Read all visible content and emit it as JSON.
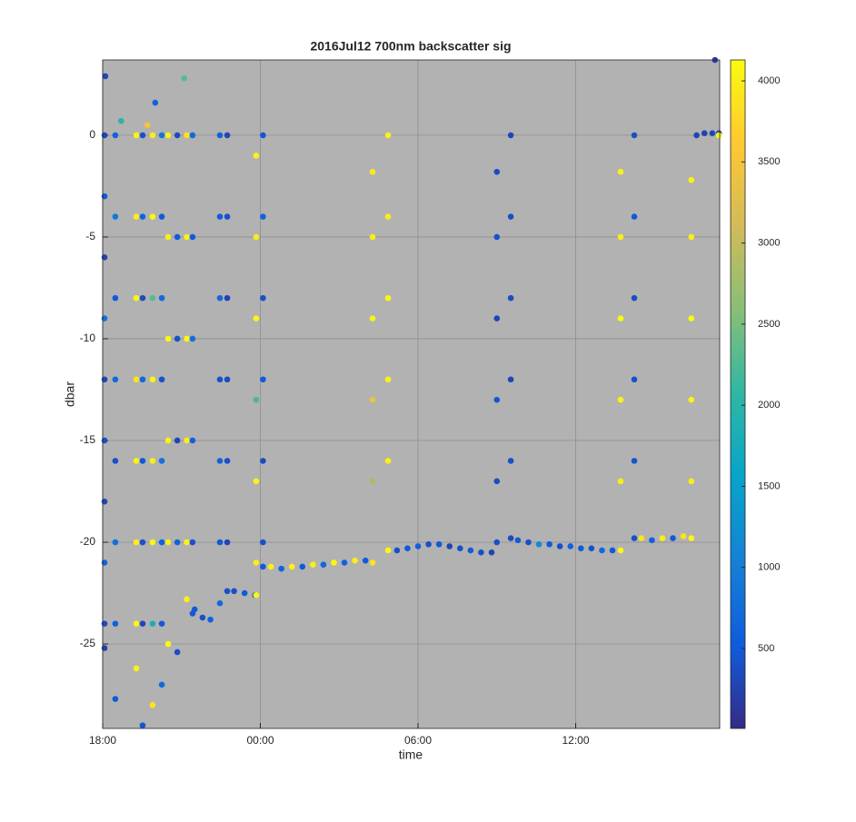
{
  "chart_data": {
    "type": "scatter",
    "title": "2016Jul12 700nm backscatter sig",
    "x_label": "time",
    "y_label": "dbar",
    "xlim": [
      0,
      23.48
    ],
    "ylim": [
      -29.15,
      3.7
    ],
    "xticks": [
      {
        "value": 0,
        "label": "18:00"
      },
      {
        "value": 6,
        "label": "00:00"
      },
      {
        "value": 12,
        "label": "06:00"
      },
      {
        "value": 18,
        "label": "12:00"
      }
    ],
    "yticks": [
      -25,
      -20,
      -15,
      -10,
      -5,
      0
    ],
    "grid": true,
    "background": "#b2b2b2",
    "clim": [
      7,
      4129
    ],
    "cticks": [
      500,
      1000,
      1500,
      2000,
      2500,
      3000,
      3500,
      4000
    ],
    "colormap": [
      "#352a87",
      "#0f5cdd",
      "#1481d6",
      "#06a4ca",
      "#2eb7a4",
      "#87bf77",
      "#d1bb59",
      "#fec832",
      "#f9fb0e"
    ],
    "x": [
      0.07,
      0.07,
      0.07,
      0.07,
      0.07,
      0.07,
      0.07,
      0.07,
      0.07,
      0.07,
      0.48,
      0.48,
      0.48,
      0.48,
      0.48,
      0.48,
      0.48,
      0.48,
      1.28,
      1.28,
      1.28,
      1.28,
      1.28,
      1.28,
      1.28,
      1.28,
      1.52,
      1.52,
      1.52,
      1.52,
      1.52,
      1.52,
      1.52,
      1.52,
      1.9,
      1.9,
      1.9,
      1.9,
      1.9,
      1.9,
      1.9,
      1.9,
      2.25,
      2.25,
      2.25,
      2.25,
      2.25,
      2.25,
      2.25,
      2.25,
      2.49,
      2.49,
      2.49,
      2.49,
      2.49,
      2.49,
      2.84,
      2.84,
      2.84,
      2.84,
      2.84,
      2.84,
      3.2,
      3.2,
      3.2,
      3.2,
      3.2,
      3.2,
      3.42,
      3.42,
      3.42,
      3.42,
      3.42,
      3.42,
      3.5,
      3.8,
      4.1,
      4.46,
      4.46,
      4.46,
      4.46,
      4.46,
      4.46,
      4.46,
      4.74,
      4.74,
      4.74,
      4.74,
      4.74,
      4.74,
      4.74,
      5.0,
      5.4,
      5.8,
      5.84,
      5.84,
      5.84,
      5.84,
      5.84,
      5.84,
      5.84,
      6.1,
      6.1,
      6.1,
      6.1,
      6.1,
      6.1,
      6.1,
      6.4,
      6.8,
      7.2,
      7.6,
      8.0,
      8.4,
      8.8,
      9.2,
      9.6,
      10.0,
      10.27,
      10.27,
      10.27,
      10.27,
      10.27,
      10.27,
      10.86,
      10.86,
      10.86,
      10.86,
      10.86,
      10.86,
      11.2,
      11.6,
      12.0,
      12.4,
      12.8,
      13.2,
      13.6,
      14.0,
      14.4,
      14.8,
      15.0,
      15.0,
      15.0,
      15.0,
      15.0,
      15.0,
      15.53,
      15.53,
      15.53,
      15.53,
      15.53,
      15.53,
      15.8,
      16.2,
      16.6,
      17.0,
      17.4,
      17.8,
      18.2,
      18.6,
      19.0,
      19.4,
      19.71,
      19.71,
      19.71,
      19.71,
      19.71,
      19.71,
      20.23,
      20.23,
      20.23,
      20.23,
      20.23,
      20.23,
      20.5,
      20.9,
      21.3,
      21.7,
      22.1,
      22.4,
      22.4,
      22.4,
      22.4,
      22.4,
      22.4,
      22.6,
      22.9,
      23.2,
      23.45,
      23.45,
      23.3,
      0.1,
      2.0,
      3.1,
      0.7,
      1.7
    ],
    "values": [
      0,
      -3,
      -6,
      -9,
      -12,
      -15,
      -18,
      -21,
      -24,
      -25.2,
      0,
      -4,
      -8,
      -12,
      -16,
      -20,
      -24,
      -27.7,
      0,
      -4,
      -8,
      -12,
      -16,
      -20,
      -24,
      -26.2,
      0,
      -4,
      -8,
      -12,
      -16,
      -20,
      -24,
      -29,
      0,
      -4,
      -8,
      -12,
      -16,
      -20,
      -24,
      -28,
      0,
      -4,
      -8,
      -12,
      -16,
      -20,
      -24,
      -27,
      0,
      -5,
      -10,
      -15,
      -20,
      -25,
      0,
      -5,
      -10,
      -15,
      -20,
      -25.4,
      0,
      -5,
      -10,
      -15,
      -20,
      -22.8,
      0,
      -5,
      -10,
      -15,
      -20,
      -23.5,
      -23.3,
      -23.7,
      -23.8,
      0,
      -4,
      -8,
      -12,
      -16,
      -20,
      -23,
      0,
      -4,
      -8,
      -12,
      -16,
      -20,
      -22.4,
      -22.4,
      -22.5,
      -22.6,
      -1,
      -5,
      -9,
      -13,
      -17,
      -21,
      -22.6,
      0,
      -4,
      -8,
      -12,
      -16,
      -20,
      -21.2,
      -21.2,
      -21.3,
      -21.2,
      -21.2,
      -21.1,
      -21.1,
      -21.0,
      -21.0,
      -20.9,
      -20.9,
      -1.8,
      -5,
      -9,
      -13,
      -17,
      -21,
      0,
      -4,
      -8,
      -12,
      -16,
      -20.4,
      -20.4,
      -20.3,
      -20.2,
      -20.1,
      -20.1,
      -20.2,
      -20.3,
      -20.4,
      -20.5,
      -20.5,
      -1.8,
      -5,
      -9,
      -13,
      -17,
      -20,
      0,
      -4,
      -8,
      -12,
      -16,
      -19.8,
      -19.9,
      -20.0,
      -20.1,
      -20.1,
      -20.2,
      -20.2,
      -20.3,
      -20.3,
      -20.4,
      -20.4,
      -1.8,
      -5,
      -9,
      -13,
      -17,
      -20.4,
      0,
      -4,
      -8,
      -12,
      -16,
      -19.8,
      -19.8,
      -19.9,
      -19.8,
      -19.8,
      -19.7,
      -2.2,
      -5,
      -9,
      -13,
      -17,
      -19.8,
      0,
      0.1,
      0.1,
      0.1,
      0,
      3.7,
      2.9,
      1.6,
      2.8,
      0.7,
      0.5
    ],
    "color_values": [
      300,
      500,
      250,
      800,
      300,
      400,
      300,
      600,
      350,
      250,
      600,
      900,
      500,
      700,
      400,
      800,
      600,
      500,
      4050,
      4000,
      4100,
      3900,
      4050,
      4000,
      4100,
      4050,
      400,
      600,
      350,
      700,
      500,
      400,
      300,
      450,
      4000,
      4100,
      2300,
      4050,
      4000,
      4100,
      1800,
      3900,
      900,
      500,
      700,
      400,
      800,
      600,
      500,
      700,
      4050,
      4000,
      4100,
      4050,
      4000,
      4100,
      350,
      500,
      400,
      300,
      600,
      400,
      3900,
      4050,
      4100,
      4000,
      4050,
      4000,
      700,
      500,
      800,
      600,
      400,
      500,
      500,
      400,
      600,
      600,
      500,
      700,
      400,
      600,
      500,
      700,
      300,
      400,
      300,
      350,
      400,
      300,
      400,
      400,
      500,
      400,
      4050,
      4000,
      4100,
      2200,
      4050,
      4000,
      4100,
      450,
      600,
      400,
      500,
      350,
      400,
      500,
      4000,
      600,
      4050,
      500,
      4000,
      700,
      4100,
      600,
      4000,
      500,
      3950,
      4000,
      4050,
      3400,
      2800,
      3900,
      4050,
      4000,
      4100,
      4050,
      4000,
      4100,
      400,
      500,
      600,
      400,
      500,
      300,
      400,
      500,
      400,
      300,
      350,
      400,
      300,
      450,
      350,
      400,
      300,
      400,
      350,
      300,
      400,
      350,
      500,
      400,
      1200,
      500,
      400,
      600,
      500,
      400,
      700,
      500,
      4050,
      4000,
      4100,
      4050,
      4000,
      4100,
      400,
      500,
      350,
      400,
      450,
      400,
      3900,
      600,
      4000,
      500,
      3900,
      4050,
      4000,
      4100,
      4050,
      4000,
      4100,
      300,
      250,
      300,
      200,
      4100,
      200,
      300,
      600,
      2300,
      2000,
      3500
    ]
  }
}
